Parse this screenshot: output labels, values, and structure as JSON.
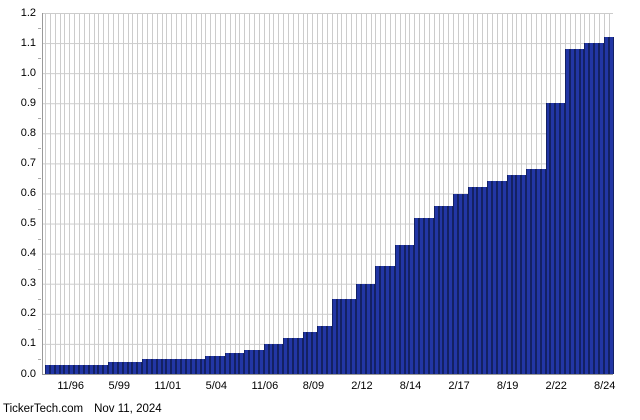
{
  "footer": {
    "source": "TickerTech.com",
    "date": "Nov 11, 2024"
  },
  "colors": {
    "background": "#ffffff",
    "bar_fill": "#2236a5",
    "bar_edge": "#132163",
    "grid": "#cccccc",
    "axis": "#999999",
    "text": "#000000"
  },
  "chart_data": {
    "type": "bar",
    "title": "",
    "xlabel": "",
    "ylabel": "",
    "ylim": [
      0,
      1.2
    ],
    "grid": true,
    "legend": "none",
    "y_tick_labels": [
      "1.2",
      "1.1",
      "1.0",
      "0.9",
      "0.8",
      "0.7",
      "0.6",
      "0.5",
      "0.4",
      "0.3",
      "0.2",
      "0.1",
      "0.0"
    ],
    "x_tick_labels": [
      "11/96",
      "5/99",
      "11/01",
      "5/04",
      "11/06",
      "8/09",
      "2/12",
      "8/14",
      "2/17",
      "8/19",
      "2/22",
      "8/24"
    ],
    "x_tick_bar_indices": [
      5,
      15,
      25,
      35,
      45,
      55,
      65,
      75,
      85,
      95,
      105,
      115
    ],
    "values": [
      0.03,
      0.03,
      0.03,
      0.03,
      0.03,
      0.03,
      0.03,
      0.03,
      0.03,
      0.03,
      0.03,
      0.03,
      0.03,
      0.04,
      0.04,
      0.04,
      0.04,
      0.04,
      0.04,
      0.04,
      0.05,
      0.05,
      0.05,
      0.05,
      0.05,
      0.05,
      0.05,
      0.05,
      0.05,
      0.05,
      0.05,
      0.05,
      0.05,
      0.06,
      0.06,
      0.06,
      0.06,
      0.07,
      0.07,
      0.07,
      0.07,
      0.08,
      0.08,
      0.08,
      0.08,
      0.1,
      0.1,
      0.1,
      0.1,
      0.12,
      0.12,
      0.12,
      0.12,
      0.14,
      0.14,
      0.14,
      0.16,
      0.16,
      0.16,
      0.25,
      0.25,
      0.25,
      0.25,
      0.25,
      0.3,
      0.3,
      0.3,
      0.3,
      0.36,
      0.36,
      0.36,
      0.36,
      0.43,
      0.43,
      0.43,
      0.43,
      0.52,
      0.52,
      0.52,
      0.52,
      0.56,
      0.56,
      0.56,
      0.56,
      0.6,
      0.6,
      0.6,
      0.62,
      0.62,
      0.62,
      0.62,
      0.64,
      0.64,
      0.64,
      0.64,
      0.66,
      0.66,
      0.66,
      0.66,
      0.68,
      0.68,
      0.68,
      0.68,
      0.9,
      0.9,
      0.9,
      0.9,
      1.08,
      1.08,
      1.08,
      1.08,
      1.1,
      1.1,
      1.1,
      1.1,
      1.12,
      1.12
    ]
  }
}
